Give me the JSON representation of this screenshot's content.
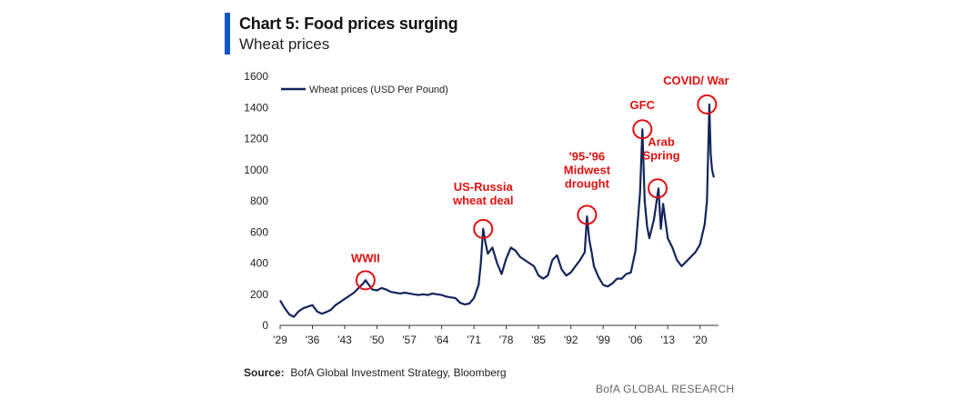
{
  "header": {
    "title": "Chart 5: Food prices surging",
    "subtitle": "Wheat prices"
  },
  "footer": {
    "source_label": "Source:",
    "source_text": "BofA Global Investment Strategy, Bloomberg",
    "brand": "BofA GLOBAL RESEARCH"
  },
  "colors": {
    "accent": "#0b56c9",
    "series": "#14245c",
    "annotation": "#e01010"
  },
  "chart_data": {
    "type": "line",
    "title": "Chart 5: Food prices surging",
    "subtitle": "Wheat prices",
    "xlabel": "",
    "ylabel": "",
    "xlim": [
      1929,
      2024
    ],
    "ylim": [
      0,
      1600
    ],
    "yticks": [
      0,
      200,
      400,
      600,
      800,
      1000,
      1200,
      1400,
      1600
    ],
    "xtick_values": [
      1929,
      1936,
      1943,
      1950,
      1957,
      1964,
      1971,
      1978,
      1985,
      1992,
      1999,
      2006,
      2013,
      2020
    ],
    "xtick_labels": [
      "'29",
      "'36",
      "'43",
      "'50",
      "'57",
      "'64",
      "'71",
      "'78",
      "'85",
      "'92",
      "'99",
      "'06",
      "'13",
      "'20"
    ],
    "grid": false,
    "legend_position": "top-left",
    "series": [
      {
        "name": "Wheat prices (USD Per Pound)",
        "x": [
          1929,
          1930,
          1931,
          1932,
          1933,
          1934,
          1935,
          1936,
          1937,
          1938,
          1939,
          1940,
          1941,
          1942,
          1943,
          1944,
          1945,
          1946,
          1947,
          1947.5,
          1948,
          1949,
          1950,
          1951,
          1952,
          1953,
          1954,
          1955,
          1956,
          1957,
          1958,
          1959,
          1960,
          1961,
          1962,
          1963,
          1964,
          1965,
          1966,
          1967,
          1968,
          1969,
          1970,
          1971,
          1972,
          1972.5,
          1973,
          1973.5,
          1974,
          1975,
          1976,
          1977,
          1978,
          1979,
          1980,
          1981,
          1982,
          1983,
          1984,
          1985,
          1986,
          1987,
          1988,
          1989,
          1990,
          1991,
          1992,
          1993,
          1994,
          1995,
          1995.5,
          1996,
          1996.5,
          1997,
          1998,
          1999,
          2000,
          2001,
          2002,
          2003,
          2004,
          2005,
          2006,
          2007,
          2007.5,
          2008,
          2008.5,
          2009,
          2010,
          2011,
          2011.5,
          2012,
          2013,
          2014,
          2015,
          2016,
          2017,
          2018,
          2019,
          2020,
          2021,
          2021.5,
          2022,
          2022.3,
          2022.6,
          2023
        ],
        "values": [
          160,
          110,
          70,
          55,
          90,
          110,
          120,
          130,
          90,
          75,
          85,
          100,
          130,
          150,
          170,
          190,
          210,
          240,
          270,
          290,
          270,
          230,
          225,
          240,
          230,
          215,
          210,
          205,
          210,
          205,
          200,
          195,
          200,
          195,
          205,
          200,
          195,
          185,
          180,
          175,
          145,
          135,
          140,
          175,
          260,
          400,
          620,
          530,
          460,
          500,
          400,
          330,
          430,
          500,
          480,
          440,
          420,
          400,
          380,
          320,
          300,
          320,
          420,
          450,
          360,
          320,
          340,
          380,
          420,
          470,
          700,
          550,
          470,
          380,
          310,
          260,
          250,
          270,
          300,
          300,
          330,
          340,
          480,
          850,
          1260,
          800,
          640,
          560,
          680,
          880,
          620,
          780,
          560,
          500,
          420,
          380,
          410,
          440,
          470,
          520,
          650,
          800,
          1420,
          1100,
          1000,
          950
        ]
      }
    ],
    "annotations": [
      {
        "label": "WWII",
        "x": 1947.5,
        "y": 290
      },
      {
        "label": "US-Russia wheat deal",
        "x": 1973,
        "y": 620
      },
      {
        "label": "'95-'96 Midwest drought",
        "x": 1995.5,
        "y": 710
      },
      {
        "label": "GFC",
        "x": 2007.5,
        "y": 1260
      },
      {
        "label": "Arab Spring",
        "x": 2010.8,
        "y": 880
      },
      {
        "label": "COVID/ War",
        "x": 2021.5,
        "y": 1420
      }
    ]
  }
}
